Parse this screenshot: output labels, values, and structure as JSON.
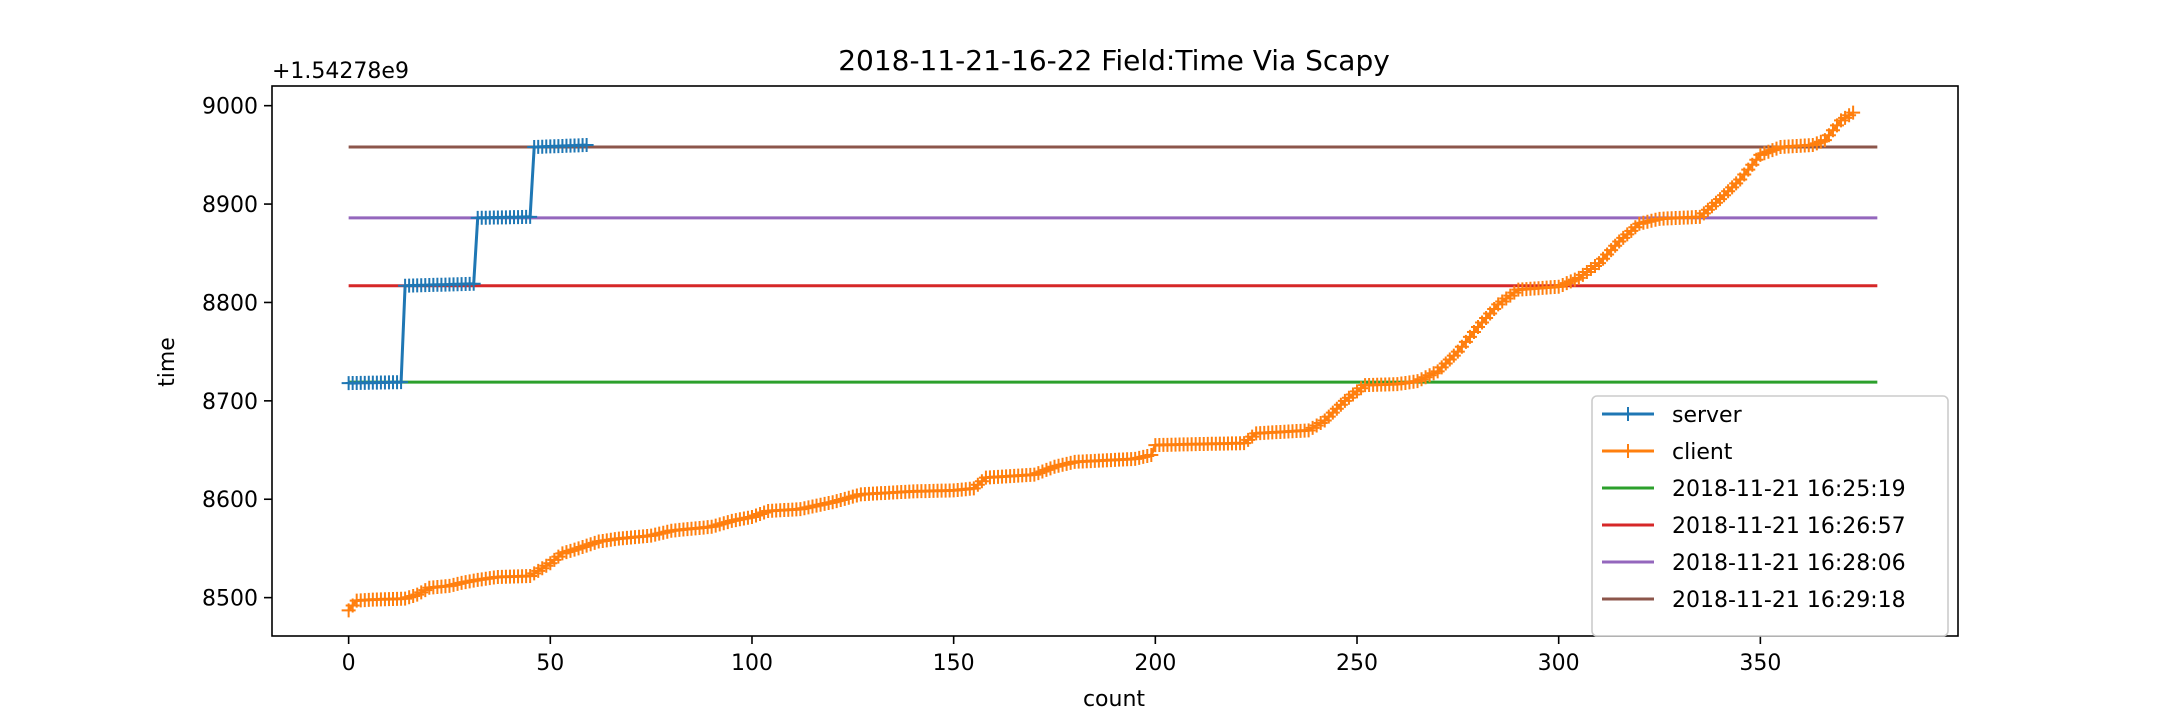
{
  "chart_data": {
    "type": "line",
    "title": "2018-11-21-16-22 Field:Time Via Scapy",
    "xlabel": "count",
    "ylabel": "time",
    "y_offset_label": "+1.54278e9",
    "xlim": [
      -19,
      399
    ],
    "ylim": [
      8461,
      9020
    ],
    "x_ticks": [
      0,
      50,
      100,
      150,
      200,
      250,
      300,
      350
    ],
    "y_ticks": [
      8500,
      8600,
      8700,
      8800,
      8900,
      9000
    ],
    "grid": false,
    "legend_position": "lower-right",
    "series": [
      {
        "name": "server",
        "color": "#1f77b4",
        "marker": "+",
        "points": [
          [
            0,
            8718
          ],
          [
            13,
            8719
          ],
          [
            14,
            8817
          ],
          [
            31,
            8819
          ],
          [
            32,
            8886
          ],
          [
            45,
            8887
          ],
          [
            46,
            8958
          ],
          [
            59,
            8960
          ]
        ]
      },
      {
        "name": "client",
        "color": "#ff7f0e",
        "marker": "+",
        "points": [
          [
            0,
            8487
          ],
          [
            2,
            8497
          ],
          [
            6,
            8498
          ],
          [
            14,
            8499
          ],
          [
            17,
            8503
          ],
          [
            20,
            8510
          ],
          [
            25,
            8512
          ],
          [
            28,
            8515
          ],
          [
            32,
            8518
          ],
          [
            37,
            8521
          ],
          [
            45,
            8522
          ],
          [
            50,
            8535
          ],
          [
            53,
            8545
          ],
          [
            57,
            8550
          ],
          [
            62,
            8557
          ],
          [
            67,
            8560
          ],
          [
            75,
            8563
          ],
          [
            80,
            8568
          ],
          [
            90,
            8572
          ],
          [
            95,
            8578
          ],
          [
            100,
            8582
          ],
          [
            104,
            8588
          ],
          [
            112,
            8590
          ],
          [
            120,
            8597
          ],
          [
            127,
            8605
          ],
          [
            140,
            8608
          ],
          [
            150,
            8609
          ],
          [
            155,
            8611
          ],
          [
            158,
            8622
          ],
          [
            170,
            8625
          ],
          [
            175,
            8633
          ],
          [
            180,
            8638
          ],
          [
            195,
            8641
          ],
          [
            199,
            8645
          ],
          [
            200,
            8655
          ],
          [
            210,
            8656
          ],
          [
            222,
            8657
          ],
          [
            225,
            8667
          ],
          [
            238,
            8670
          ],
          [
            242,
            8680
          ],
          [
            247,
            8700
          ],
          [
            252,
            8716
          ],
          [
            260,
            8717
          ],
          [
            265,
            8720
          ],
          [
            270,
            8730
          ],
          [
            275,
            8750
          ],
          [
            280,
            8775
          ],
          [
            285,
            8798
          ],
          [
            290,
            8813
          ],
          [
            300,
            8816
          ],
          [
            305,
            8825
          ],
          [
            310,
            8840
          ],
          [
            315,
            8862
          ],
          [
            320,
            8880
          ],
          [
            325,
            8885
          ],
          [
            335,
            8887
          ],
          [
            340,
            8905
          ],
          [
            345,
            8925
          ],
          [
            350,
            8950
          ],
          [
            355,
            8958
          ],
          [
            363,
            8960
          ],
          [
            366,
            8965
          ],
          [
            370,
            8985
          ],
          [
            373,
            8993
          ]
        ]
      },
      {
        "name": "2018-11-21 16:25:19",
        "color": "#2ca02c",
        "x_range": [
          0,
          379
        ],
        "value": 8719
      },
      {
        "name": "2018-11-21 16:26:57",
        "color": "#d62728",
        "x_range": [
          0,
          379
        ],
        "value": 8817
      },
      {
        "name": "2018-11-21 16:28:06",
        "color": "#9467bd",
        "x_range": [
          0,
          379
        ],
        "value": 8886
      },
      {
        "name": "2018-11-21 16:29:18",
        "color": "#8c564b",
        "x_range": [
          0,
          379
        ],
        "value": 8958
      }
    ]
  }
}
